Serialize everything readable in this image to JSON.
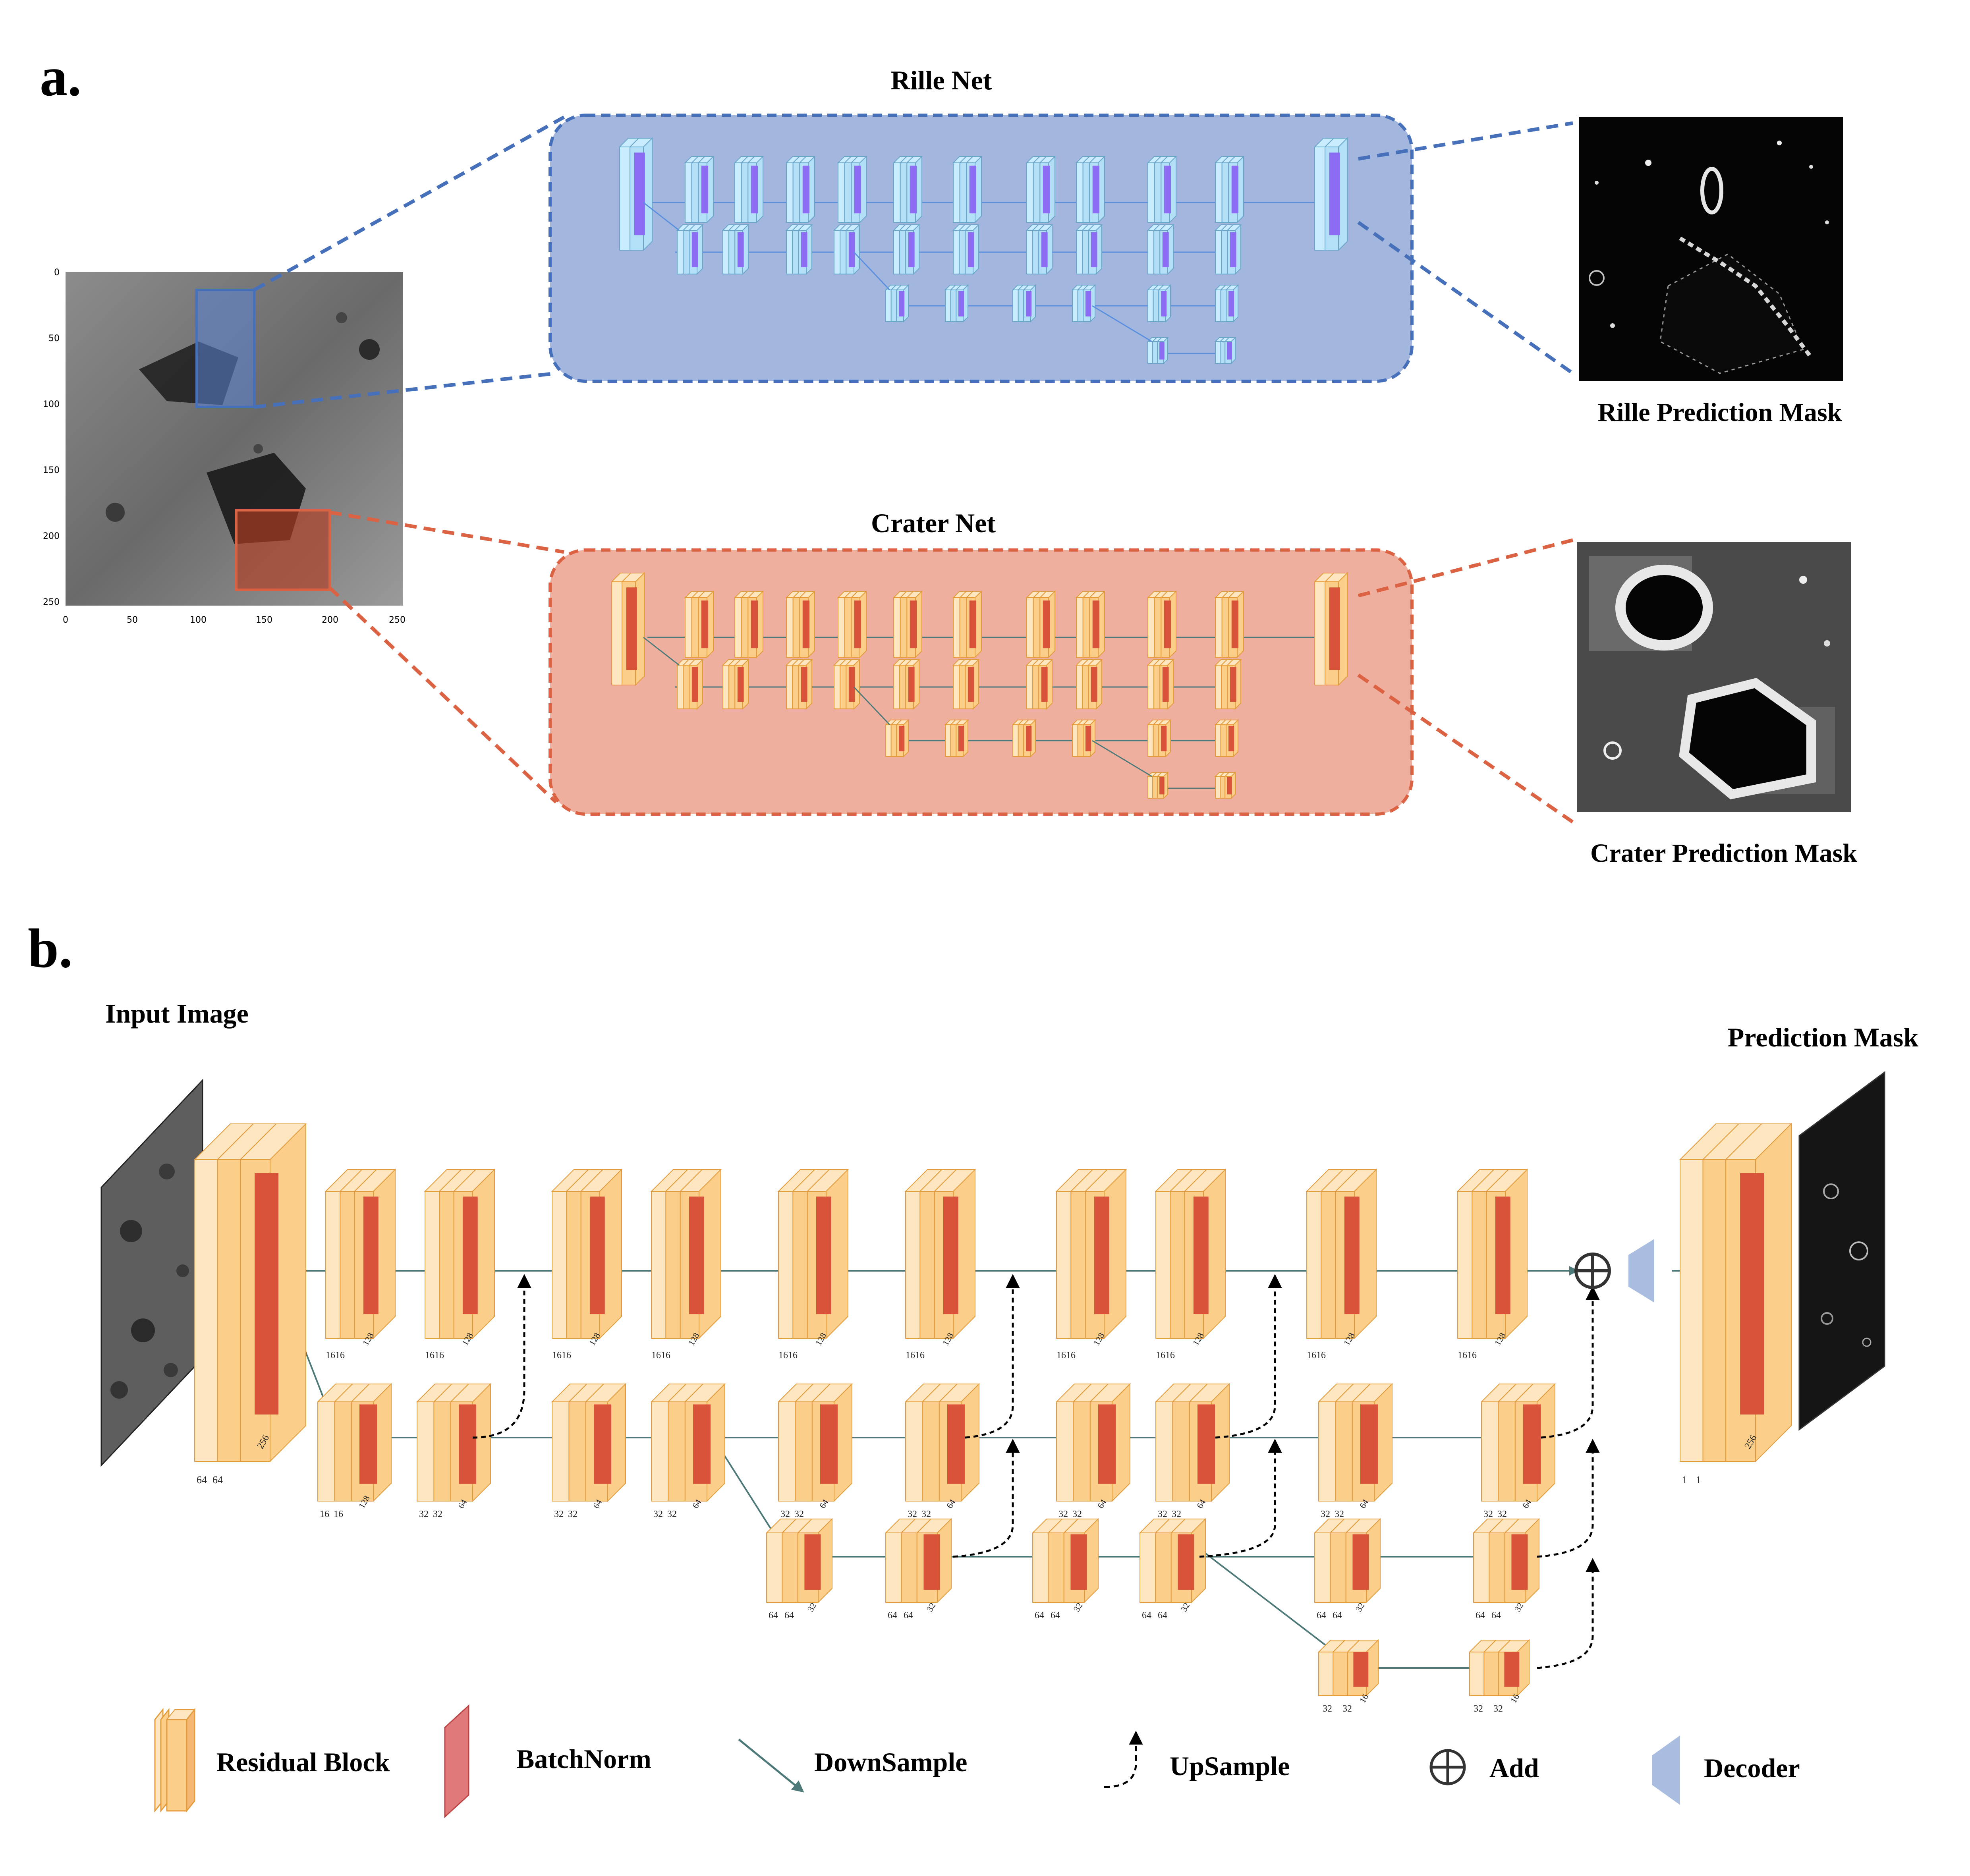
{
  "panel_a": {
    "label": "a.",
    "rille_net_title": "Rille Net",
    "crater_net_title": "Crater Net",
    "rille_mask_caption": "Rille Prediction Mask",
    "crater_mask_caption": "Crater Prediction Mask",
    "input_axes": {
      "x_ticks": [
        "0",
        "50",
        "100",
        "150",
        "200",
        "250"
      ],
      "y_ticks": [
        "0",
        "50",
        "100",
        "150",
        "200",
        "250"
      ]
    }
  },
  "panel_b": {
    "label": "b.",
    "input_caption": "Input Image",
    "output_caption": "Prediction Mask",
    "stem_labels": {
      "w1": "64",
      "w2": "64",
      "h": "256"
    },
    "head_labels": {
      "w1": "1",
      "w2": "1",
      "h": "256"
    },
    "row1_labels": {
      "w": "1616",
      "h": "128"
    },
    "row2_labels": [
      {
        "w1": "16",
        "w2": "16",
        "h": "128"
      },
      {
        "w1": "32",
        "w2": "32",
        "h": "64"
      }
    ],
    "row3_labels": {
      "w1": "64",
      "w2": "64",
      "h": "32"
    },
    "row4_labels": {
      "w1": "32",
      "w2": "32",
      "h": "16"
    }
  },
  "legend": {
    "residual_block": "Residual Block",
    "batchnorm": "BatchNorm",
    "downsample": "DownSample",
    "upsample": "UpSample",
    "add": "Add",
    "decoder": "Decoder"
  },
  "colors": {
    "rille_fill": "#a3b6dd",
    "rille_border": "#4770bb",
    "crater_fill": "#efaf9f",
    "crater_border": "#db6243",
    "block_orange": "#fbcf8a",
    "block_light": "#fde6c0",
    "batchnorm_red": "#d9533a",
    "connection": "#4d7a78",
    "decoder_blue": "#a9bde0"
  }
}
